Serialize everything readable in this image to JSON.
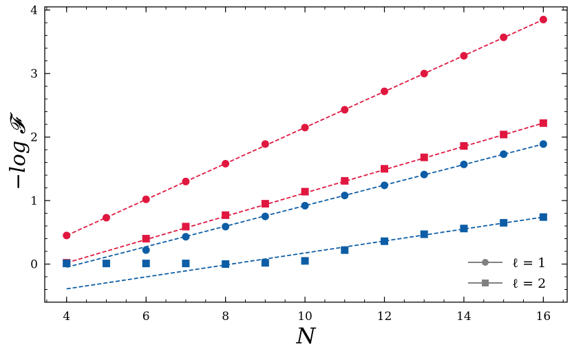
{
  "chart_data": {
    "type": "scatter",
    "xlabel": "N",
    "ylabel": "−log 𝓕",
    "xlim": [
      3.45,
      16.6
    ],
    "ylim": [
      -0.6,
      4.05
    ],
    "xticks": [
      4,
      6,
      8,
      10,
      12,
      14,
      16
    ],
    "yticks": [
      0,
      1,
      2,
      3,
      4
    ],
    "grid": false,
    "legend_position": "bottom-right",
    "legend": [
      {
        "label": "ℓ = 1",
        "marker": "circle",
        "color": "#808080"
      },
      {
        "label": "ℓ = 2",
        "marker": "square",
        "color": "#808080"
      }
    ],
    "colors": {
      "red": "#e0173f",
      "blue": "#0c5da5"
    },
    "series": [
      {
        "marker": "circle",
        "color": "#e0173f",
        "x": [
          4,
          5,
          6,
          7,
          8,
          9,
          10,
          11,
          12,
          13,
          14,
          15,
          16
        ],
        "y": [
          0.45,
          0.73,
          1.02,
          1.3,
          1.58,
          1.89,
          2.15,
          2.43,
          2.72,
          3.0,
          3.28,
          3.57,
          3.85
        ],
        "fit": [
          [
            4,
            0.45
          ],
          [
            16,
            3.85
          ]
        ]
      },
      {
        "marker": "square",
        "color": "#e0173f",
        "x": [
          4,
          6,
          7,
          8,
          9,
          10,
          11,
          12,
          13,
          14,
          15,
          16
        ],
        "y": [
          0.02,
          0.4,
          0.59,
          0.77,
          0.95,
          1.14,
          1.31,
          1.5,
          1.68,
          1.86,
          2.04,
          2.22
        ],
        "fit": [
          [
            4,
            0.02
          ],
          [
            16,
            2.22
          ]
        ]
      },
      {
        "marker": "circle",
        "color": "#0c5da5",
        "x": [
          4,
          6,
          7,
          8,
          9,
          10,
          11,
          12,
          13,
          14,
          15,
          16
        ],
        "y": [
          0.01,
          0.22,
          0.43,
          0.59,
          0.75,
          0.92,
          1.08,
          1.24,
          1.41,
          1.57,
          1.73,
          1.89
        ],
        "fit": [
          [
            4,
            -0.05
          ],
          [
            16,
            1.89
          ]
        ]
      },
      {
        "marker": "square",
        "color": "#0c5da5",
        "x": [
          4,
          5,
          6,
          7,
          8,
          9,
          10,
          11,
          12,
          13,
          14,
          15,
          16
        ],
        "y": [
          0.01,
          0.01,
          0.01,
          0.01,
          0.0,
          0.02,
          0.05,
          0.22,
          0.36,
          0.47,
          0.56,
          0.65,
          0.74
        ],
        "fit": [
          [
            4,
            -0.39
          ],
          [
            16,
            0.74
          ]
        ]
      }
    ]
  }
}
